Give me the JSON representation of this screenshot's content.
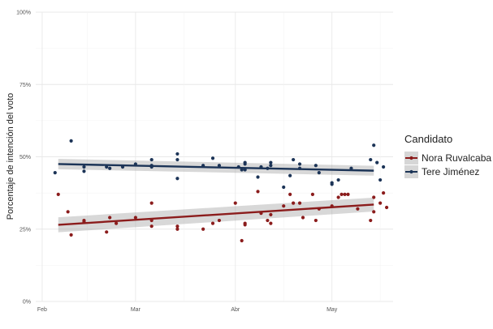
{
  "chart_data": {
    "type": "scatter",
    "title": "",
    "xlabel": "",
    "ylabel": "Porcentaje de intención del voto",
    "x_ticks": [
      "Feb",
      "Mar",
      "Abr",
      "May"
    ],
    "y_ticks": [
      "0%",
      "25%",
      "50%",
      "75%",
      "100%"
    ],
    "ylim": [
      0,
      100
    ],
    "xlim": [
      "2024-01-30",
      "2024-05-20"
    ],
    "grid": true,
    "legend": {
      "title": "Candidato",
      "position": "right"
    },
    "series": [
      {
        "name": "Nora Ruvalcaba",
        "color": "#8b1c1c",
        "trend": {
          "x": [
            "2024-02-06",
            "2024-05-14"
          ],
          "y": [
            26.5,
            33.5
          ],
          "band": [
            2.6,
            2.4
          ]
        },
        "points": [
          [
            "2024-02-06",
            37
          ],
          [
            "2024-02-09",
            31
          ],
          [
            "2024-02-10",
            23
          ],
          [
            "2024-02-14",
            28
          ],
          [
            "2024-02-14",
            27.5
          ],
          [
            "2024-02-21",
            24
          ],
          [
            "2024-02-22",
            29
          ],
          [
            "2024-02-24",
            27
          ],
          [
            "2024-03-01",
            29
          ],
          [
            "2024-03-06",
            34
          ],
          [
            "2024-03-06",
            28
          ],
          [
            "2024-03-06",
            26
          ],
          [
            "2024-03-14",
            26
          ],
          [
            "2024-03-14",
            25
          ],
          [
            "2024-03-22",
            25
          ],
          [
            "2024-03-25",
            27
          ],
          [
            "2024-03-27",
            28
          ],
          [
            "2024-04-01",
            34
          ],
          [
            "2024-04-03",
            21
          ],
          [
            "2024-04-04",
            26.5
          ],
          [
            "2024-04-04",
            27
          ],
          [
            "2024-04-08",
            38
          ],
          [
            "2024-04-09",
            30.5
          ],
          [
            "2024-04-11",
            28
          ],
          [
            "2024-04-12",
            27
          ],
          [
            "2024-04-12",
            30
          ],
          [
            "2024-04-16",
            33
          ],
          [
            "2024-04-18",
            37
          ],
          [
            "2024-04-19",
            34
          ],
          [
            "2024-04-21",
            34
          ],
          [
            "2024-04-22",
            29
          ],
          [
            "2024-04-25",
            37
          ],
          [
            "2024-04-26",
            28
          ],
          [
            "2024-04-27",
            32
          ],
          [
            "2024-05-01",
            33
          ],
          [
            "2024-05-03",
            36
          ],
          [
            "2024-05-04",
            37
          ],
          [
            "2024-05-05",
            37
          ],
          [
            "2024-05-06",
            37
          ],
          [
            "2024-05-09",
            32
          ],
          [
            "2024-05-13",
            28
          ],
          [
            "2024-05-14",
            36
          ],
          [
            "2024-05-14",
            31
          ],
          [
            "2024-05-16",
            34
          ],
          [
            "2024-05-17",
            37.5
          ],
          [
            "2024-05-18",
            32.5
          ]
        ]
      },
      {
        "name": "Tere Jiménez",
        "color": "#1c3457",
        "trend": {
          "x": [
            "2024-02-06",
            "2024-05-14"
          ],
          "y": [
            47.5,
            45.2
          ],
          "band": [
            1.8,
            1.7
          ]
        },
        "points": [
          [
            "2024-02-05",
            44.5
          ],
          [
            "2024-02-10",
            55.5
          ],
          [
            "2024-02-14",
            45
          ],
          [
            "2024-02-14",
            46.5
          ],
          [
            "2024-02-21",
            46.5
          ],
          [
            "2024-02-22",
            46
          ],
          [
            "2024-02-26",
            46.5
          ],
          [
            "2024-03-01",
            47.5
          ],
          [
            "2024-03-06",
            49
          ],
          [
            "2024-03-06",
            47
          ],
          [
            "2024-03-06",
            46.5
          ],
          [
            "2024-03-14",
            51
          ],
          [
            "2024-03-14",
            49
          ],
          [
            "2024-03-14",
            42.5
          ],
          [
            "2024-03-22",
            47
          ],
          [
            "2024-03-25",
            49.5
          ],
          [
            "2024-03-27",
            47
          ],
          [
            "2024-04-02",
            46.5
          ],
          [
            "2024-04-03",
            45.5
          ],
          [
            "2024-04-04",
            48
          ],
          [
            "2024-04-04",
            47.5
          ],
          [
            "2024-04-04",
            45.5
          ],
          [
            "2024-04-08",
            43
          ],
          [
            "2024-04-09",
            46.5
          ],
          [
            "2024-04-11",
            46
          ],
          [
            "2024-04-12",
            48
          ],
          [
            "2024-04-12",
            47
          ],
          [
            "2024-04-16",
            39.5
          ],
          [
            "2024-04-18",
            43.5
          ],
          [
            "2024-04-19",
            49
          ],
          [
            "2024-04-21",
            47.5
          ],
          [
            "2024-04-21",
            46
          ],
          [
            "2024-04-26",
            47
          ],
          [
            "2024-04-27",
            44.5
          ],
          [
            "2024-05-01",
            41
          ],
          [
            "2024-05-01",
            40.5
          ],
          [
            "2024-05-03",
            42
          ],
          [
            "2024-05-07",
            46
          ],
          [
            "2024-05-13",
            49
          ],
          [
            "2024-05-14",
            54
          ],
          [
            "2024-05-15",
            48
          ],
          [
            "2024-05-16",
            42
          ],
          [
            "2024-05-17",
            46.5
          ]
        ]
      }
    ]
  }
}
